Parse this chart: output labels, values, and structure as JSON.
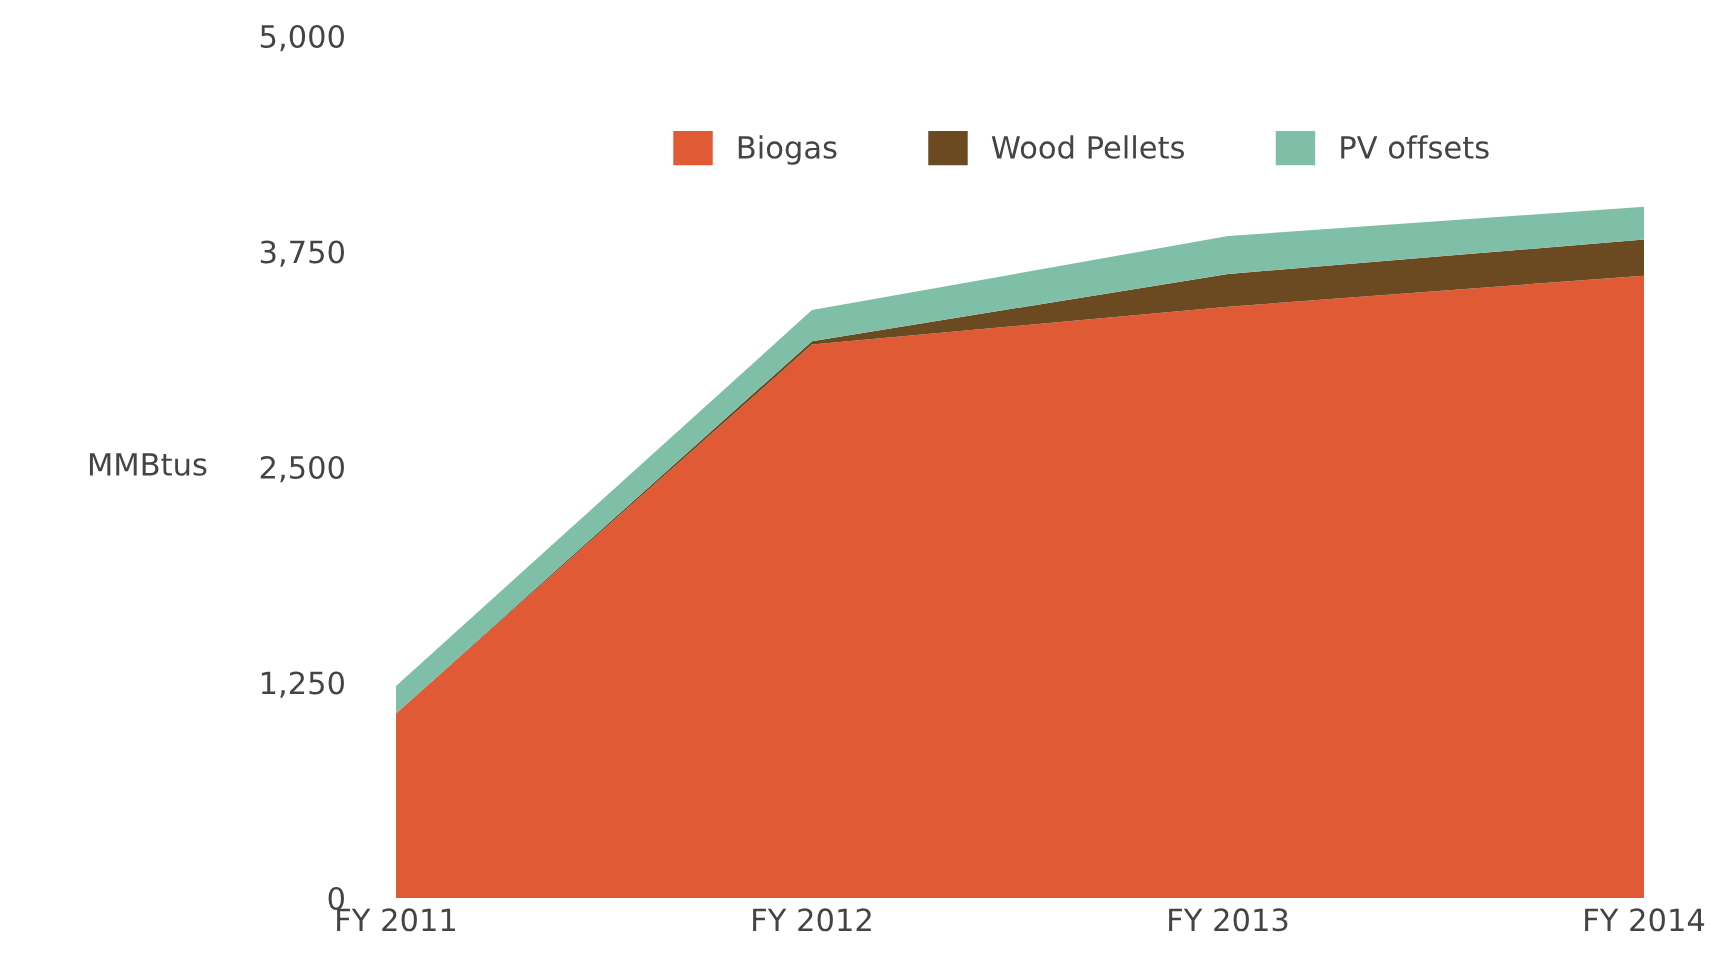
{
  "chart_data": {
    "type": "area",
    "stacked": true,
    "ylabel": "MMBtus",
    "categories": [
      "FY 2011",
      "FY 2012",
      "FY 2013",
      "FY 2014"
    ],
    "series": [
      {
        "name": "Biogas",
        "color": "#e05a35",
        "values": [
          1070,
          3210,
          3430,
          3610
        ]
      },
      {
        "name": "Wood Pellets",
        "color": "#6b4a22",
        "values": [
          0,
          20,
          190,
          210
        ]
      },
      {
        "name": "PV offsets",
        "color": "#7fbfa8",
        "values": [
          160,
          180,
          220,
          190
        ]
      }
    ],
    "ylim": [
      0,
      5000
    ],
    "yticks": [
      0,
      {
        "value": 1250,
        "label": "1,250"
      },
      {
        "value": 2500,
        "label": "2,500"
      },
      {
        "value": 3750,
        "label": "3,750"
      },
      {
        "value": 5000,
        "label": "5,000"
      }
    ],
    "grid": false,
    "legend": "top"
  }
}
